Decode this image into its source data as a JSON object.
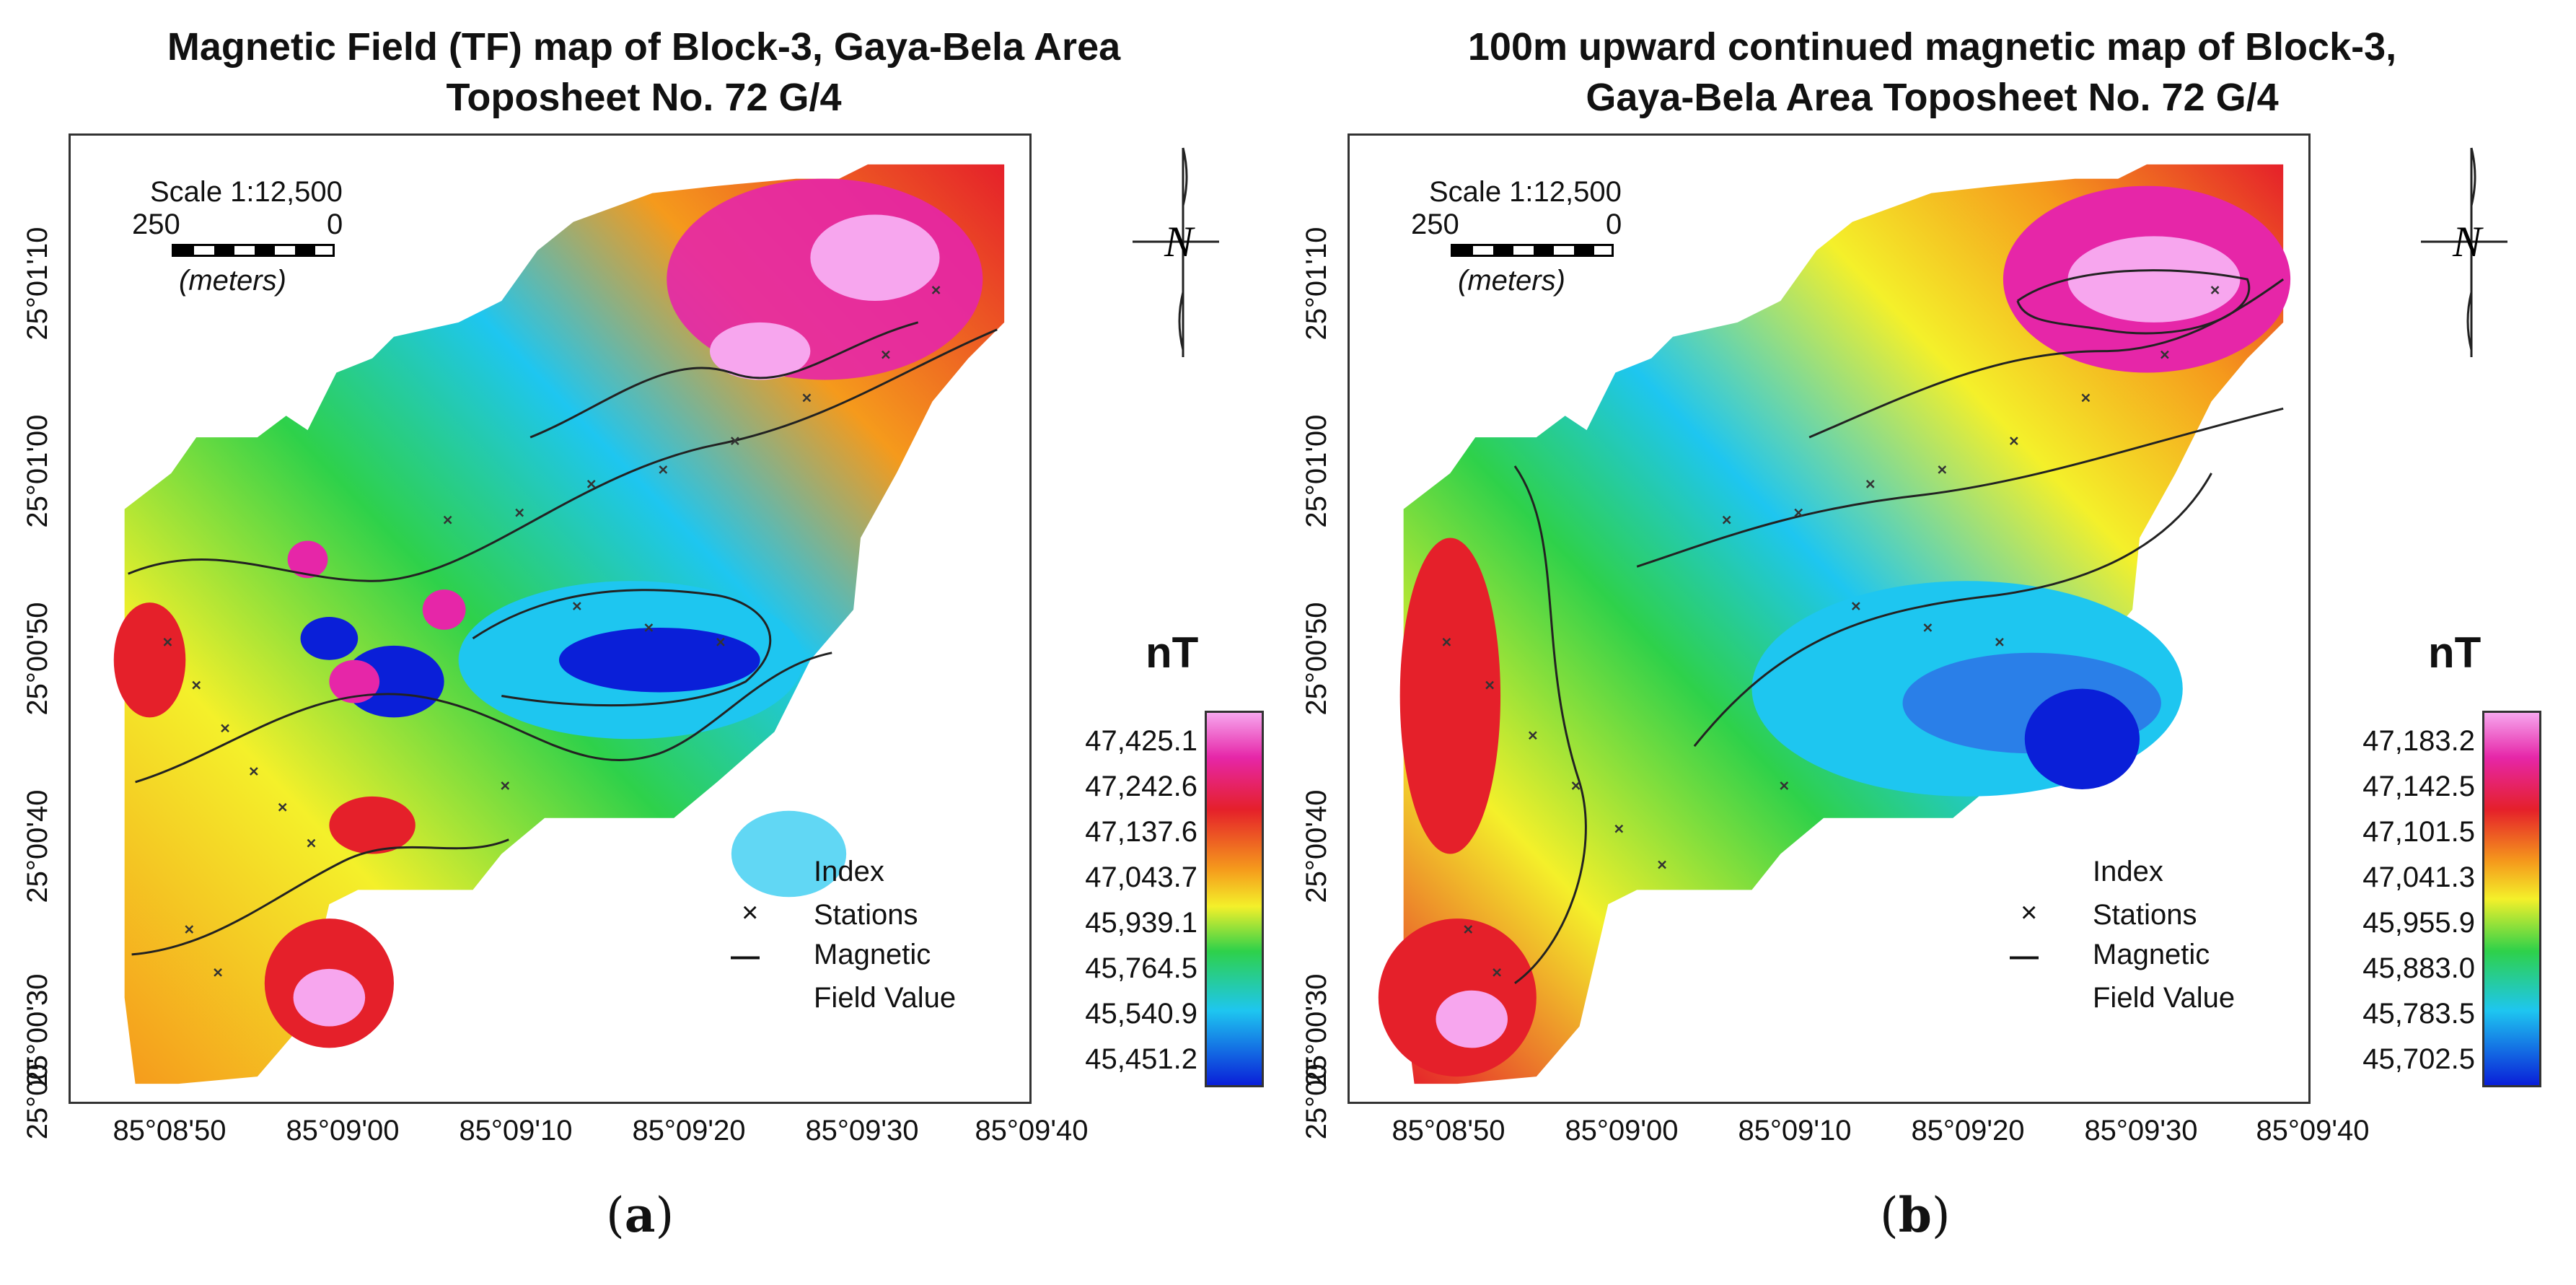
{
  "panels": [
    {
      "title_line1": "Magnetic Field (TF) map of Block-3, Gaya-Bela Area",
      "title_line2": "Toposheet No. 72 G/4",
      "scale_label": "Scale 1:12,500",
      "scale_left": "250",
      "scale_right": "0",
      "scale_units": "(meters)",
      "lat_ticks": [
        "25°01'10",
        "25°01'00",
        "25°00'50",
        "25°00'40",
        "25°00'30",
        "25°00'"
      ],
      "lon_ticks": [
        "85°08'50",
        "85°09'00",
        "85°09'10",
        "85°09'20",
        "85°09'30",
        "85°09'40"
      ],
      "north_symbol": "N",
      "unit": "nT",
      "colorbar_labels": [
        "47,425.1",
        "47,242.6",
        "47,137.6",
        "47,043.7",
        "45,939.1",
        "45,764.5",
        "45,540.9",
        "45,451.2"
      ],
      "legend_index_line1": "Index",
      "legend_index_line2": "Stations",
      "legend_field_line1": "Magnetic",
      "legend_field_line2": "Field Value",
      "caption_letter": "a"
    },
    {
      "title_line1": "100m upward continued magnetic map of Block-3,",
      "title_line2": "Gaya-Bela Area Toposheet No. 72 G/4",
      "scale_label": "Scale 1:12,500",
      "scale_left": "250",
      "scale_right": "0",
      "scale_units": "(meters)",
      "lat_ticks": [
        "25°01'10",
        "25°01'00",
        "25°00'50",
        "25°00'40",
        "25°00'30",
        "25°00'"
      ],
      "lon_ticks": [
        "85°08'50",
        "85°09'00",
        "85°09'10",
        "85°09'20",
        "85°09'30",
        "85°09'40"
      ],
      "north_symbol": "N",
      "unit": "nT",
      "colorbar_labels": [
        "47,183.2",
        "47,142.5",
        "47,101.5",
        "47,041.3",
        "45,955.9",
        "45,883.0",
        "45,783.5",
        "45,702.5"
      ],
      "legend_index_line1": "Index",
      "legend_index_line2": "Stations",
      "legend_field_line1": "Magnetic",
      "legend_field_line2": "Field Value",
      "caption_letter": "b"
    }
  ],
  "colors": {
    "low": "#0a1fd8",
    "cyan": "#1ec6f0",
    "green": "#2ed14a",
    "yellow": "#f4f02a",
    "orange": "#f59a1c",
    "red": "#e5202a",
    "magenta": "#e626a8",
    "pink": "#f7a6ee"
  },
  "glyphs": {
    "station": "×",
    "line_sample": "—"
  }
}
